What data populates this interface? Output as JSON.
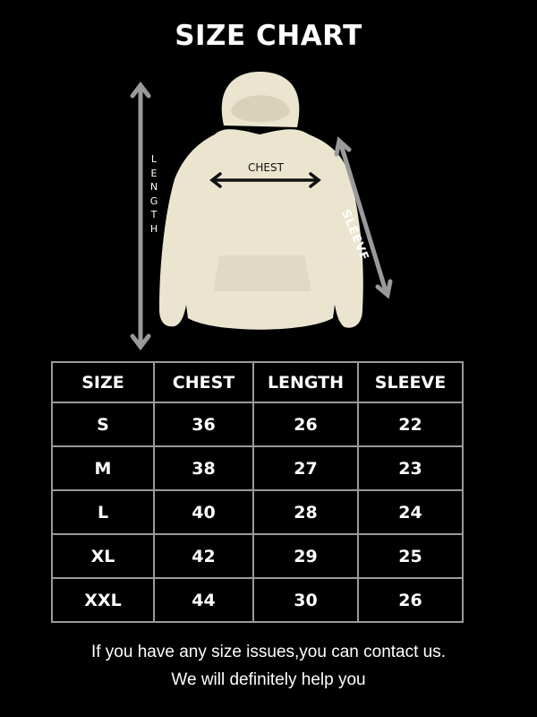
{
  "title": "SIZE CHART",
  "diagram": {
    "length_label": "LENGTH",
    "chest_label": "CHEST",
    "sleeve_label": "SLEEVE",
    "garment_color": "#ebe5d0",
    "arrow_color": "#9a9a9a"
  },
  "table": {
    "headers": [
      "SIZE",
      "CHEST",
      "LENGTH",
      "SLEEVE"
    ],
    "rows": [
      [
        "S",
        "36",
        "26",
        "22"
      ],
      [
        "M",
        "38",
        "27",
        "23"
      ],
      [
        "L",
        "40",
        "28",
        "24"
      ],
      [
        "XL",
        "42",
        "29",
        "25"
      ],
      [
        "XXL",
        "44",
        "30",
        "26"
      ]
    ]
  },
  "footer": {
    "line1": "If you have any size issues,you can contact us.",
    "line2": "We will definitely help you"
  }
}
